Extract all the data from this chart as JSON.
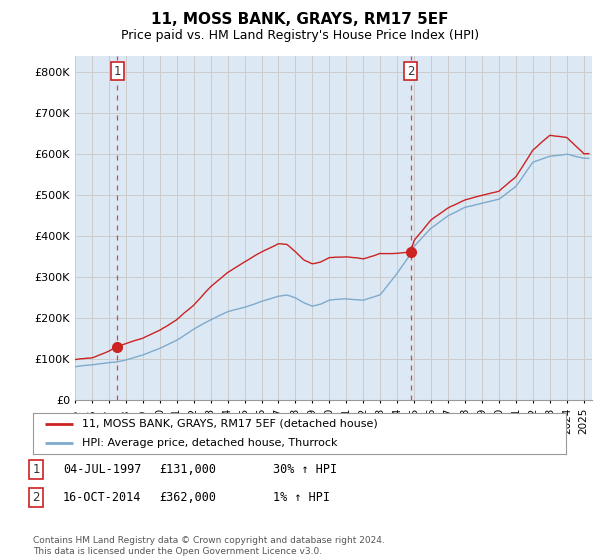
{
  "title": "11, MOSS BANK, GRAYS, RM17 5EF",
  "subtitle": "Price paid vs. HM Land Registry's House Price Index (HPI)",
  "ylim": [
    0,
    840000
  ],
  "yticks": [
    0,
    100000,
    200000,
    300000,
    400000,
    500000,
    600000,
    700000,
    800000
  ],
  "ytick_labels": [
    "£0",
    "£100K",
    "£200K",
    "£300K",
    "£400K",
    "£500K",
    "£600K",
    "£700K",
    "£800K"
  ],
  "sale1_year": 1997.5,
  "sale1_price": 131000,
  "sale2_year": 2014.79,
  "sale2_price": 362000,
  "hpi_color": "#7eaacc",
  "price_color": "#cc2222",
  "grid_color": "#cccccc",
  "bg_color": "#dce9f5",
  "plot_area_color": "#dce9f5",
  "legend_line1": "11, MOSS BANK, GRAYS, RM17 5EF (detached house)",
  "legend_line2": "HPI: Average price, detached house, Thurrock",
  "table_row1": [
    "1",
    "04-JUL-1997",
    "£131,000",
    "30% ↑ HPI"
  ],
  "table_row2": [
    "2",
    "16-OCT-2014",
    "£362,000",
    "1% ↑ HPI"
  ],
  "footer": "Contains HM Land Registry data © Crown copyright and database right 2024.\nThis data is licensed under the Open Government Licence v3.0.",
  "xmin": 1995.0,
  "xmax": 2025.5
}
